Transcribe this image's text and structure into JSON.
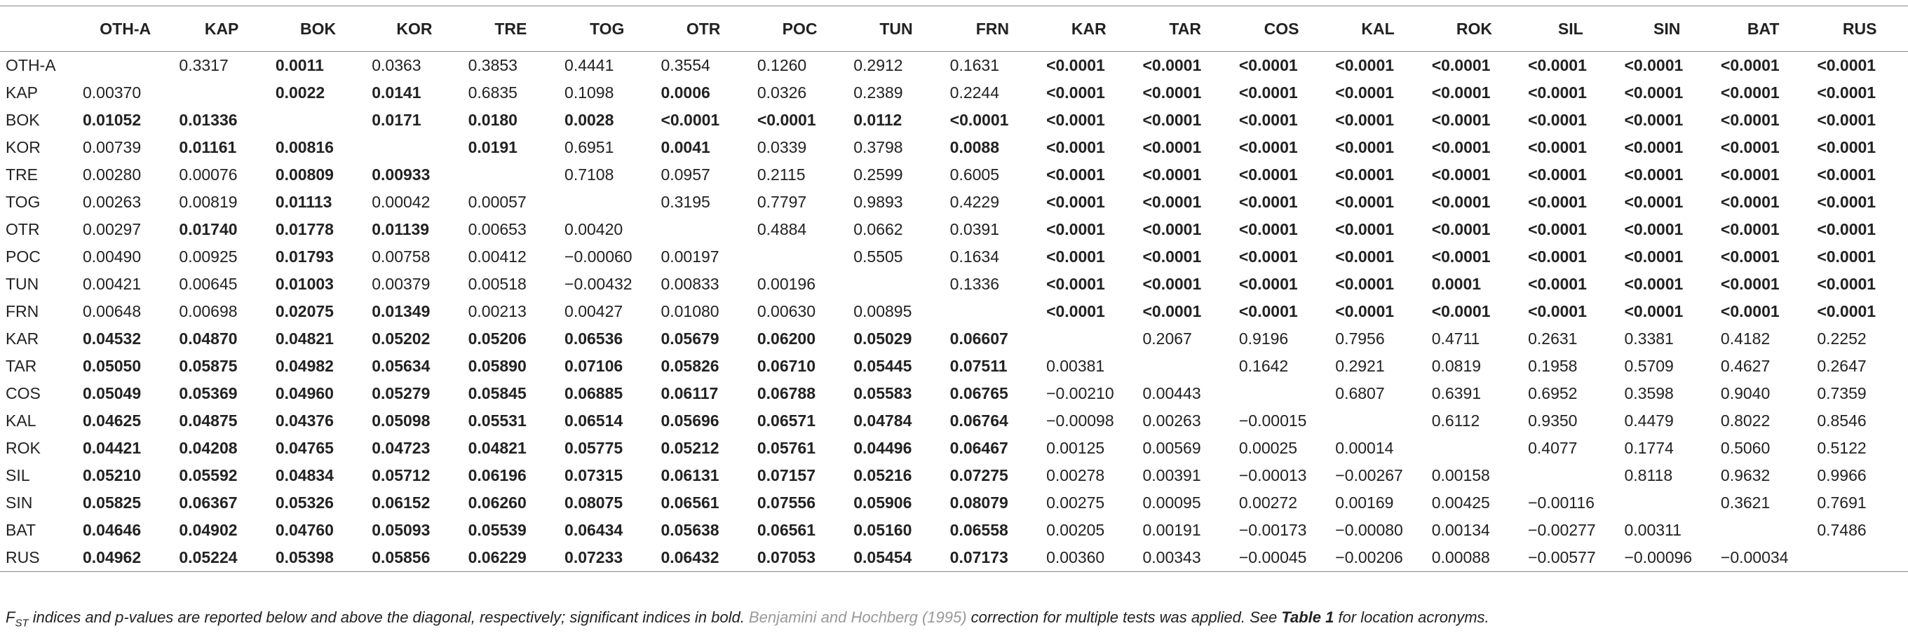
{
  "table": {
    "columns": [
      "OTH-A",
      "KAP",
      "BOK",
      "KOR",
      "TRE",
      "TOG",
      "OTR",
      "POC",
      "TUN",
      "FRN",
      "KAR",
      "TAR",
      "COS",
      "KAL",
      "ROK",
      "SIL",
      "SIN",
      "BAT",
      "RUS"
    ],
    "rows": [
      {
        "label": "OTH-A",
        "cells": [
          null,
          "0.3317",
          "0.0011",
          "0.0363",
          "0.3853",
          "0.4441",
          "0.3554",
          "0.1260",
          "0.2912",
          "0.1631",
          "<0.0001",
          "<0.0001",
          "<0.0001",
          "<0.0001",
          "<0.0001",
          "<0.0001",
          "<0.0001",
          "<0.0001",
          "<0.0001"
        ],
        "bold": [
          2,
          10,
          11,
          12,
          13,
          14,
          15,
          16,
          17,
          18
        ]
      },
      {
        "label": "KAP",
        "cells": [
          "0.00370",
          null,
          "0.0022",
          "0.0141",
          "0.6835",
          "0.1098",
          "0.0006",
          "0.0326",
          "0.2389",
          "0.2244",
          "<0.0001",
          "<0.0001",
          "<0.0001",
          "<0.0001",
          "<0.0001",
          "<0.0001",
          "<0.0001",
          "<0.0001",
          "<0.0001"
        ],
        "bold": [
          2,
          3,
          6,
          10,
          11,
          12,
          13,
          14,
          15,
          16,
          17,
          18
        ]
      },
      {
        "label": "BOK",
        "cells": [
          "0.01052",
          "0.01336",
          null,
          "0.0171",
          "0.0180",
          "0.0028",
          "<0.0001",
          "<0.0001",
          "0.0112",
          "<0.0001",
          "<0.0001",
          "<0.0001",
          "<0.0001",
          "<0.0001",
          "<0.0001",
          "<0.0001",
          "<0.0001",
          "<0.0001",
          "<0.0001"
        ],
        "bold": [
          0,
          1,
          3,
          4,
          5,
          6,
          7,
          8,
          9,
          10,
          11,
          12,
          13,
          14,
          15,
          16,
          17,
          18
        ]
      },
      {
        "label": "KOR",
        "cells": [
          "0.00739",
          "0.01161",
          "0.00816",
          null,
          "0.0191",
          "0.6951",
          "0.0041",
          "0.0339",
          "0.3798",
          "0.0088",
          "<0.0001",
          "<0.0001",
          "<0.0001",
          "<0.0001",
          "<0.0001",
          "<0.0001",
          "<0.0001",
          "<0.0001",
          "<0.0001"
        ],
        "bold": [
          1,
          2,
          4,
          6,
          9,
          10,
          11,
          12,
          13,
          14,
          15,
          16,
          17,
          18
        ]
      },
      {
        "label": "TRE",
        "cells": [
          "0.00280",
          "0.00076",
          "0.00809",
          "0.00933",
          null,
          "0.7108",
          "0.0957",
          "0.2115",
          "0.2599",
          "0.6005",
          "<0.0001",
          "<0.0001",
          "<0.0001",
          "<0.0001",
          "<0.0001",
          "<0.0001",
          "<0.0001",
          "<0.0001",
          "<0.0001"
        ],
        "bold": [
          2,
          3,
          10,
          11,
          12,
          13,
          14,
          15,
          16,
          17,
          18
        ]
      },
      {
        "label": "TOG",
        "cells": [
          "0.00263",
          "0.00819",
          "0.01113",
          "0.00042",
          "0.00057",
          null,
          "0.3195",
          "0.7797",
          "0.9893",
          "0.4229",
          "<0.0001",
          "<0.0001",
          "<0.0001",
          "<0.0001",
          "<0.0001",
          "<0.0001",
          "<0.0001",
          "<0.0001",
          "<0.0001"
        ],
        "bold": [
          2,
          10,
          11,
          12,
          13,
          14,
          15,
          16,
          17,
          18
        ]
      },
      {
        "label": "OTR",
        "cells": [
          "0.00297",
          "0.01740",
          "0.01778",
          "0.01139",
          "0.00653",
          "0.00420",
          null,
          "0.4884",
          "0.0662",
          "0.0391",
          "<0.0001",
          "<0.0001",
          "<0.0001",
          "<0.0001",
          "<0.0001",
          "<0.0001",
          "<0.0001",
          "<0.0001",
          "<0.0001"
        ],
        "bold": [
          1,
          2,
          3,
          10,
          11,
          12,
          13,
          14,
          15,
          16,
          17,
          18
        ]
      },
      {
        "label": "POC",
        "cells": [
          "0.00490",
          "0.00925",
          "0.01793",
          "0.00758",
          "0.00412",
          "−0.00060",
          "0.00197",
          null,
          "0.5505",
          "0.1634",
          "<0.0001",
          "<0.0001",
          "<0.0001",
          "<0.0001",
          "<0.0001",
          "<0.0001",
          "<0.0001",
          "<0.0001",
          "<0.0001"
        ],
        "bold": [
          2,
          10,
          11,
          12,
          13,
          14,
          15,
          16,
          17,
          18
        ]
      },
      {
        "label": "TUN",
        "cells": [
          "0.00421",
          "0.00645",
          "0.01003",
          "0.00379",
          "0.00518",
          "−0.00432",
          "0.00833",
          "0.00196",
          null,
          "0.1336",
          "<0.0001",
          "<0.0001",
          "<0.0001",
          "<0.0001",
          "0.0001",
          "<0.0001",
          "<0.0001",
          "<0.0001",
          "<0.0001"
        ],
        "bold": [
          2,
          10,
          11,
          12,
          13,
          14,
          15,
          16,
          17,
          18
        ]
      },
      {
        "label": "FRN",
        "cells": [
          "0.00648",
          "0.00698",
          "0.02075",
          "0.01349",
          "0.00213",
          "0.00427",
          "0.01080",
          "0.00630",
          "0.00895",
          null,
          "<0.0001",
          "<0.0001",
          "<0.0001",
          "<0.0001",
          "<0.0001",
          "<0.0001",
          "<0.0001",
          "<0.0001",
          "<0.0001"
        ],
        "bold": [
          2,
          3,
          10,
          11,
          12,
          13,
          14,
          15,
          16,
          17,
          18
        ]
      },
      {
        "label": "KAR",
        "cells": [
          "0.04532",
          "0.04870",
          "0.04821",
          "0.05202",
          "0.05206",
          "0.06536",
          "0.05679",
          "0.06200",
          "0.05029",
          "0.06607",
          null,
          "0.2067",
          "0.9196",
          "0.7956",
          "0.4711",
          "0.2631",
          "0.3381",
          "0.4182",
          "0.2252"
        ],
        "bold": [
          0,
          1,
          2,
          3,
          4,
          5,
          6,
          7,
          8,
          9
        ]
      },
      {
        "label": "TAR",
        "cells": [
          "0.05050",
          "0.05875",
          "0.04982",
          "0.05634",
          "0.05890",
          "0.07106",
          "0.05826",
          "0.06710",
          "0.05445",
          "0.07511",
          "0.00381",
          null,
          "0.1642",
          "0.2921",
          "0.0819",
          "0.1958",
          "0.5709",
          "0.4627",
          "0.2647"
        ],
        "bold": [
          0,
          1,
          2,
          3,
          4,
          5,
          6,
          7,
          8,
          9
        ]
      },
      {
        "label": "COS",
        "cells": [
          "0.05049",
          "0.05369",
          "0.04960",
          "0.05279",
          "0.05845",
          "0.06885",
          "0.06117",
          "0.06788",
          "0.05583",
          "0.06765",
          "−0.00210",
          "0.00443",
          null,
          "0.6807",
          "0.6391",
          "0.6952",
          "0.3598",
          "0.9040",
          "0.7359"
        ],
        "bold": [
          0,
          1,
          2,
          3,
          4,
          5,
          6,
          7,
          8,
          9
        ]
      },
      {
        "label": "KAL",
        "cells": [
          "0.04625",
          "0.04875",
          "0.04376",
          "0.05098",
          "0.05531",
          "0.06514",
          "0.05696",
          "0.06571",
          "0.04784",
          "0.06764",
          "−0.00098",
          "0.00263",
          "−0.00015",
          null,
          "0.6112",
          "0.9350",
          "0.4479",
          "0.8022",
          "0.8546"
        ],
        "bold": [
          0,
          1,
          2,
          3,
          4,
          5,
          6,
          7,
          8,
          9
        ]
      },
      {
        "label": "ROK",
        "cells": [
          "0.04421",
          "0.04208",
          "0.04765",
          "0.04723",
          "0.04821",
          "0.05775",
          "0.05212",
          "0.05761",
          "0.04496",
          "0.06467",
          "0.00125",
          "0.00569",
          "0.00025",
          "0.00014",
          null,
          "0.4077",
          "0.1774",
          "0.5060",
          "0.5122"
        ],
        "bold": [
          0,
          1,
          2,
          3,
          4,
          5,
          6,
          7,
          8,
          9
        ]
      },
      {
        "label": "SIL",
        "cells": [
          "0.05210",
          "0.05592",
          "0.04834",
          "0.05712",
          "0.06196",
          "0.07315",
          "0.06131",
          "0.07157",
          "0.05216",
          "0.07275",
          "0.00278",
          "0.00391",
          "−0.00013",
          "−0.00267",
          "0.00158",
          null,
          "0.8118",
          "0.9632",
          "0.9966"
        ],
        "bold": [
          0,
          1,
          2,
          3,
          4,
          5,
          6,
          7,
          8,
          9
        ]
      },
      {
        "label": "SIN",
        "cells": [
          "0.05825",
          "0.06367",
          "0.05326",
          "0.06152",
          "0.06260",
          "0.08075",
          "0.06561",
          "0.07556",
          "0.05906",
          "0.08079",
          "0.00275",
          "0.00095",
          "0.00272",
          "0.00169",
          "0.00425",
          "−0.00116",
          null,
          "0.3621",
          "0.7691"
        ],
        "bold": [
          0,
          1,
          2,
          3,
          4,
          5,
          6,
          7,
          8,
          9
        ]
      },
      {
        "label": "BAT",
        "cells": [
          "0.04646",
          "0.04902",
          "0.04760",
          "0.05093",
          "0.05539",
          "0.06434",
          "0.05638",
          "0.06561",
          "0.05160",
          "0.06558",
          "0.00205",
          "0.00191",
          "−0.00173",
          "−0.00080",
          "0.00134",
          "−0.00277",
          "0.00311",
          null,
          "0.7486"
        ],
        "bold": [
          0,
          1,
          2,
          3,
          4,
          5,
          6,
          7,
          8,
          9
        ]
      },
      {
        "label": "RUS",
        "cells": [
          "0.04962",
          "0.05224",
          "0.05398",
          "0.05856",
          "0.06229",
          "0.07233",
          "0.06432",
          "0.07053",
          "0.05454",
          "0.07173",
          "0.00360",
          "0.00343",
          "−0.00045",
          "−0.00206",
          "0.00088",
          "−0.00577",
          "−0.00096",
          "−0.00034",
          null
        ],
        "bold": [
          0,
          1,
          2,
          3,
          4,
          5,
          6,
          7,
          8,
          9
        ]
      }
    ]
  },
  "caption": [
    "F",
    "ST",
    " indices and p-values are reported below and above the diagonal, respectively; significant indices in bold. ",
    "Benjamini and Hochberg (1995)",
    " correction for multiple tests was applied. See ",
    "Table 1",
    " for location acronyms."
  ]
}
